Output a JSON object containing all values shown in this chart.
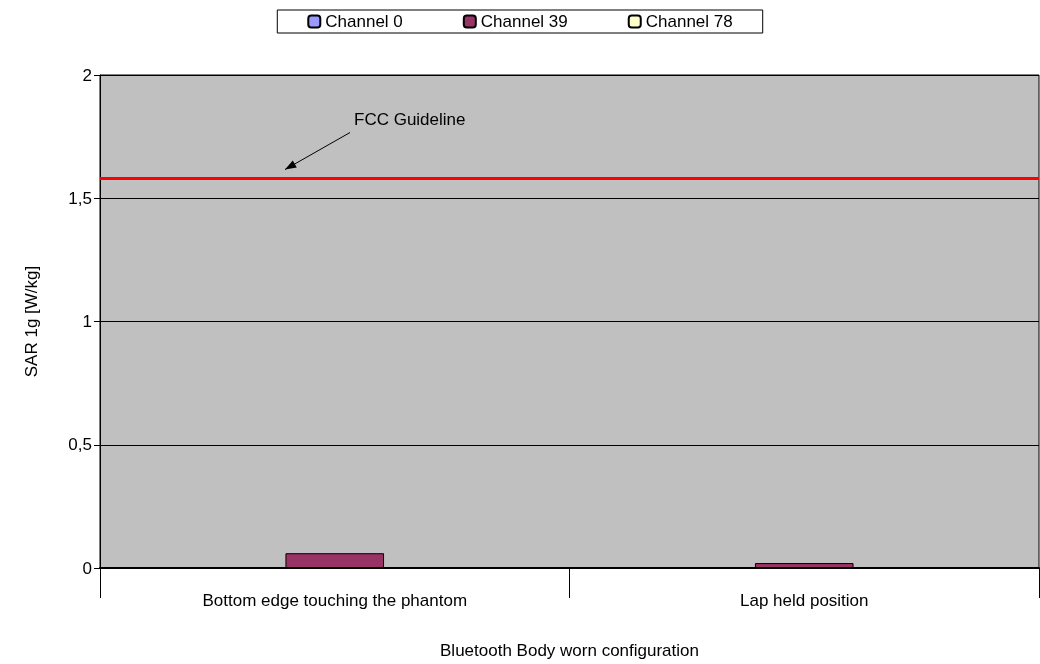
{
  "chart_data": {
    "type": "bar",
    "categories": [
      "Bottom edge touching the phantom",
      "Lap held position"
    ],
    "xlabel": "Bluetooth Body worn configuration",
    "ylabel": "SAR 1g [W/kg]",
    "series": [
      {
        "name": "Channel 0",
        "color": "#9999ff",
        "values": [
          null,
          null
        ]
      },
      {
        "name": "Channel 39",
        "color": "#993366",
        "values": [
          0.06,
          0.02
        ]
      },
      {
        "name": "Channel 78",
        "color": "#ffffcc",
        "values": [
          null,
          null
        ]
      }
    ],
    "ylim": [
      0,
      2
    ],
    "yticks": [
      0,
      {
        "value": 0.5,
        "label": "0,5"
      },
      1,
      {
        "value": 1.5,
        "label": "1,5"
      },
      2
    ],
    "ref_lines": [
      {
        "axis": "y",
        "value": 1.58,
        "label": "FCC Guideline",
        "color": "#ff0000"
      }
    ],
    "grid": "y",
    "legend": "top"
  }
}
